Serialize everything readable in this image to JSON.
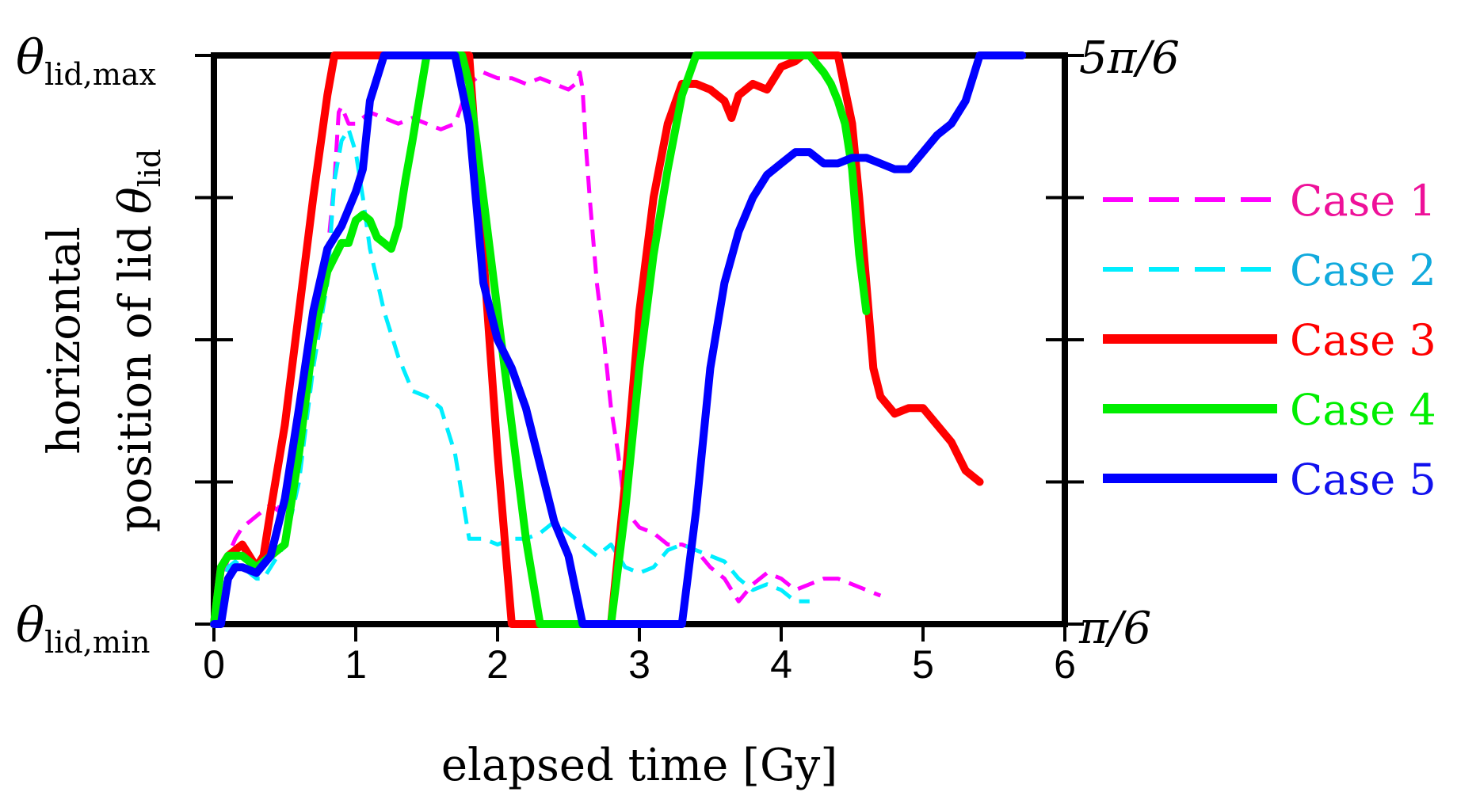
{
  "chart_data": {
    "type": "line",
    "xlabel": "elapsed time [Gy]",
    "ylabel_line1": "horizontal",
    "ylabel_line2": "position of lid",
    "ylabel_symbol": "θ",
    "ylabel_sub": "lid",
    "xlim": [
      0,
      6
    ],
    "ylim": [
      0,
      1
    ],
    "x_ticks": [
      0,
      1,
      2,
      3,
      4,
      5,
      6
    ],
    "x_tick_labels": [
      "0",
      "1",
      "2",
      "3",
      "4",
      "5",
      "6"
    ],
    "y_ticks": [
      0,
      0.25,
      0.5,
      0.75,
      1
    ],
    "y_left_labels": {
      "top_symbol": "θ",
      "top_sub": "lid,max",
      "bottom_symbol": "θ",
      "bottom_sub": "lid,min"
    },
    "y_right_labels": {
      "top": "5π/6",
      "bottom": "π/6"
    },
    "legend_position": "right",
    "series": [
      {
        "name": "Case 1",
        "color": "#ff00ff",
        "label_color": "#ee1199",
        "style": "dashed",
        "x": [
          0,
          0.05,
          0.1,
          0.15,
          0.2,
          0.25,
          0.3,
          0.35,
          0.4,
          0.45,
          0.5,
          0.6,
          0.7,
          0.8,
          0.85,
          0.88,
          0.9,
          0.95,
          1.0,
          1.1,
          1.2,
          1.3,
          1.4,
          1.5,
          1.6,
          1.7,
          1.8,
          1.9,
          2.0,
          2.1,
          2.2,
          2.3,
          2.4,
          2.5,
          2.55,
          2.58,
          2.6,
          2.62,
          2.65,
          2.7,
          2.75,
          2.8,
          2.85,
          2.9,
          3.0,
          3.1,
          3.2,
          3.3,
          3.4,
          3.5,
          3.6,
          3.7,
          3.8,
          3.9,
          4.0,
          4.1,
          4.2,
          4.3,
          4.4,
          4.5,
          4.6,
          4.7
        ],
        "y": [
          0,
          0.05,
          0.12,
          0.15,
          0.17,
          0.18,
          0.19,
          0.2,
          0.21,
          0.2,
          0.23,
          0.3,
          0.45,
          0.65,
          0.78,
          0.9,
          0.91,
          0.88,
          0.88,
          0.9,
          0.89,
          0.88,
          0.89,
          0.88,
          0.87,
          0.88,
          0.95,
          0.97,
          0.96,
          0.96,
          0.95,
          0.96,
          0.95,
          0.94,
          0.95,
          0.97,
          0.94,
          0.85,
          0.75,
          0.6,
          0.5,
          0.38,
          0.3,
          0.2,
          0.17,
          0.16,
          0.14,
          0.14,
          0.13,
          0.1,
          0.08,
          0.04,
          0.07,
          0.09,
          0.08,
          0.06,
          0.07,
          0.08,
          0.08,
          0.07,
          0.06,
          0.05
        ]
      },
      {
        "name": "Case 2",
        "color": "#00eeff",
        "label_color": "#11aadd",
        "style": "dashed",
        "x": [
          0,
          0.05,
          0.1,
          0.15,
          0.2,
          0.25,
          0.3,
          0.35,
          0.4,
          0.5,
          0.6,
          0.7,
          0.8,
          0.85,
          0.9,
          0.95,
          1.0,
          1.05,
          1.1,
          1.2,
          1.3,
          1.4,
          1.5,
          1.6,
          1.7,
          1.8,
          1.9,
          2.0,
          2.1,
          2.2,
          2.3,
          2.4,
          2.5,
          2.6,
          2.7,
          2.8,
          2.9,
          3.0,
          3.1,
          3.2,
          3.3,
          3.4,
          3.5,
          3.6,
          3.7,
          3.8,
          3.9,
          4.0,
          4.1,
          4.2
        ],
        "y": [
          0,
          0.06,
          0.1,
          0.11,
          0.1,
          0.09,
          0.08,
          0.08,
          0.1,
          0.14,
          0.25,
          0.45,
          0.6,
          0.78,
          0.85,
          0.87,
          0.83,
          0.75,
          0.66,
          0.55,
          0.47,
          0.41,
          0.4,
          0.38,
          0.3,
          0.15,
          0.15,
          0.14,
          0.15,
          0.15,
          0.16,
          0.18,
          0.16,
          0.14,
          0.12,
          0.14,
          0.1,
          0.09,
          0.1,
          0.13,
          0.14,
          0.13,
          0.12,
          0.11,
          0.08,
          0.06,
          0.07,
          0.06,
          0.04,
          0.04
        ]
      },
      {
        "name": "Case 3",
        "color": "#ff0000",
        "label_color": "#ff0000",
        "style": "solid",
        "x": [
          0,
          0.05,
          0.1,
          0.15,
          0.2,
          0.25,
          0.3,
          0.35,
          0.4,
          0.5,
          0.6,
          0.7,
          0.8,
          0.85,
          1.0,
          1.5,
          1.8,
          1.9,
          2.0,
          2.1,
          2.3,
          2.6,
          2.8,
          2.9,
          3.0,
          3.1,
          3.2,
          3.3,
          3.4,
          3.5,
          3.6,
          3.65,
          3.7,
          3.8,
          3.9,
          4.0,
          4.1,
          4.15,
          4.2,
          4.4,
          4.5,
          4.55,
          4.6,
          4.65,
          4.7,
          4.8,
          4.9,
          5.0,
          5.1,
          5.2,
          5.3,
          5.4
        ],
        "y": [
          0,
          0.1,
          0.12,
          0.13,
          0.14,
          0.12,
          0.1,
          0.12,
          0.2,
          0.35,
          0.55,
          0.75,
          0.93,
          1.0,
          1.0,
          1.0,
          1.0,
          0.65,
          0.3,
          0.0,
          0.0,
          0.0,
          0.0,
          0.25,
          0.55,
          0.75,
          0.88,
          0.95,
          0.95,
          0.94,
          0.92,
          0.89,
          0.93,
          0.95,
          0.94,
          0.98,
          0.99,
          1.0,
          1.0,
          1.0,
          0.88,
          0.75,
          0.6,
          0.45,
          0.4,
          0.37,
          0.38,
          0.38,
          0.35,
          0.32,
          0.27,
          0.25
        ]
      },
      {
        "name": "Case 4",
        "color": "#00ee00",
        "label_color": "#00ee00",
        "style": "solid",
        "x": [
          0,
          0.05,
          0.1,
          0.15,
          0.2,
          0.3,
          0.4,
          0.5,
          0.6,
          0.7,
          0.8,
          0.9,
          0.95,
          1.0,
          1.05,
          1.1,
          1.15,
          1.2,
          1.25,
          1.3,
          1.35,
          1.4,
          1.5,
          1.6,
          1.7,
          1.75,
          1.8,
          1.9,
          2.0,
          2.1,
          2.2,
          2.3,
          2.4,
          2.6,
          2.8,
          2.9,
          3.0,
          3.1,
          3.2,
          3.3,
          3.4,
          3.6,
          3.8,
          4.0,
          4.2,
          4.3,
          4.35,
          4.4,
          4.45,
          4.5,
          4.55,
          4.6
        ],
        "y": [
          0,
          0.1,
          0.12,
          0.12,
          0.12,
          0.1,
          0.12,
          0.14,
          0.3,
          0.5,
          0.62,
          0.67,
          0.67,
          0.71,
          0.72,
          0.71,
          0.68,
          0.67,
          0.66,
          0.7,
          0.78,
          0.85,
          1.0,
          1.0,
          1.0,
          1.0,
          0.95,
          0.75,
          0.55,
          0.35,
          0.15,
          0.0,
          0.0,
          0.0,
          0.0,
          0.2,
          0.45,
          0.65,
          0.8,
          0.93,
          1.0,
          1.0,
          1.0,
          1.0,
          1.0,
          0.97,
          0.95,
          0.92,
          0.88,
          0.8,
          0.65,
          0.55
        ]
      },
      {
        "name": "Case 5",
        "color": "#0000ff",
        "label_color": "#1111ee",
        "style": "solid",
        "x": [
          0,
          0.05,
          0.1,
          0.15,
          0.2,
          0.3,
          0.4,
          0.5,
          0.6,
          0.7,
          0.8,
          0.9,
          1.0,
          1.05,
          1.1,
          1.2,
          1.3,
          1.5,
          1.7,
          1.8,
          1.9,
          2.0,
          2.1,
          2.2,
          2.3,
          2.4,
          2.5,
          2.6,
          2.65,
          2.7,
          3.0,
          3.2,
          3.3,
          3.4,
          3.5,
          3.6,
          3.7,
          3.8,
          3.9,
          4.0,
          4.1,
          4.2,
          4.3,
          4.4,
          4.5,
          4.6,
          4.7,
          4.8,
          4.9,
          5.0,
          5.1,
          5.2,
          5.3,
          5.35,
          5.4,
          5.5,
          5.6,
          5.7
        ],
        "y": [
          0,
          0.0,
          0.08,
          0.1,
          0.1,
          0.09,
          0.12,
          0.22,
          0.38,
          0.55,
          0.66,
          0.7,
          0.76,
          0.8,
          0.92,
          1.0,
          1.0,
          1.0,
          1.0,
          0.88,
          0.6,
          0.5,
          0.45,
          0.38,
          0.28,
          0.18,
          0.12,
          0.0,
          0.0,
          0.0,
          0.0,
          0.0,
          0.0,
          0.2,
          0.45,
          0.6,
          0.69,
          0.75,
          0.79,
          0.81,
          0.83,
          0.83,
          0.81,
          0.81,
          0.82,
          0.82,
          0.81,
          0.8,
          0.8,
          0.83,
          0.86,
          0.88,
          0.92,
          0.96,
          1.0,
          1.0,
          1.0,
          1.0
        ]
      }
    ]
  }
}
